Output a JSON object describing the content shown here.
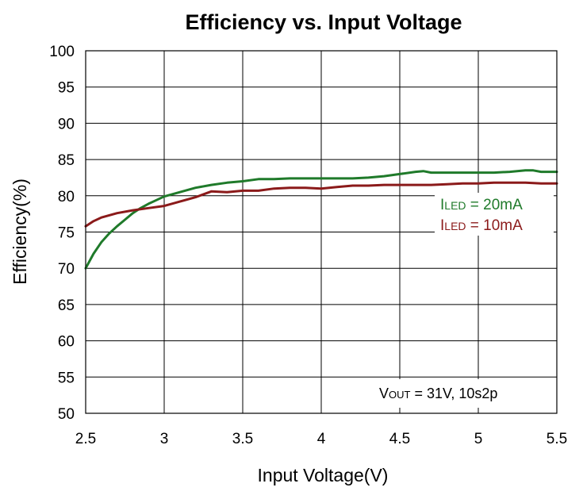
{
  "chart_data": {
    "type": "line",
    "title": "Efficiency vs. Input Voltage",
    "xlabel": "Input Voltage(V)",
    "ylabel": "Efficiency(%)",
    "xlim": [
      2.5,
      5.5
    ],
    "ylim": [
      50,
      100
    ],
    "x_ticks": [
      "2.5",
      "3",
      "3.5",
      "4",
      "4.5",
      "5",
      "5.5"
    ],
    "y_ticks": [
      "100",
      "95",
      "90",
      "85",
      "80",
      "75",
      "70",
      "65",
      "60",
      "55",
      "50"
    ],
    "grid": true,
    "series": [
      {
        "name": "ILED = 20mA",
        "label_main": "I",
        "label_sub": "LED",
        "label_rest": " = 20mA",
        "color": "#1f7a2a",
        "x": [
          2.5,
          2.55,
          2.6,
          2.65,
          2.7,
          2.75,
          2.8,
          2.85,
          2.9,
          2.95,
          3.0,
          3.1,
          3.2,
          3.3,
          3.4,
          3.5,
          3.6,
          3.7,
          3.8,
          3.9,
          4.0,
          4.1,
          4.2,
          4.3,
          4.4,
          4.5,
          4.6,
          4.65,
          4.7,
          4.8,
          4.9,
          5.0,
          5.1,
          5.2,
          5.3,
          5.35,
          5.4,
          5.5
        ],
        "values": [
          70.0,
          72.0,
          73.6,
          74.8,
          75.8,
          76.7,
          77.6,
          78.3,
          78.9,
          79.4,
          79.9,
          80.5,
          81.1,
          81.5,
          81.8,
          82.0,
          82.3,
          82.3,
          82.4,
          82.4,
          82.4,
          82.4,
          82.4,
          82.5,
          82.7,
          83.0,
          83.3,
          83.4,
          83.2,
          83.2,
          83.2,
          83.2,
          83.2,
          83.3,
          83.5,
          83.5,
          83.3,
          83.3
        ]
      },
      {
        "name": "ILED = 10mA",
        "label_main": "I",
        "label_sub": "LED",
        "label_rest": " = 10mA",
        "color": "#8b1a1a",
        "x": [
          2.5,
          2.55,
          2.6,
          2.7,
          2.8,
          2.9,
          3.0,
          3.1,
          3.2,
          3.3,
          3.4,
          3.5,
          3.6,
          3.7,
          3.8,
          3.9,
          4.0,
          4.1,
          4.2,
          4.3,
          4.4,
          4.5,
          4.6,
          4.7,
          4.8,
          4.9,
          5.0,
          5.1,
          5.2,
          5.3,
          5.4,
          5.5
        ],
        "values": [
          75.8,
          76.5,
          77.0,
          77.6,
          78.0,
          78.3,
          78.6,
          79.2,
          79.8,
          80.6,
          80.5,
          80.7,
          80.7,
          81.0,
          81.1,
          81.1,
          81.0,
          81.2,
          81.4,
          81.4,
          81.5,
          81.5,
          81.5,
          81.5,
          81.6,
          81.7,
          81.7,
          81.8,
          81.8,
          81.8,
          81.7,
          81.7
        ]
      }
    ],
    "annotation": {
      "main": "V",
      "sub": "OUT",
      "rest": " = 31V, 10s2p"
    }
  }
}
